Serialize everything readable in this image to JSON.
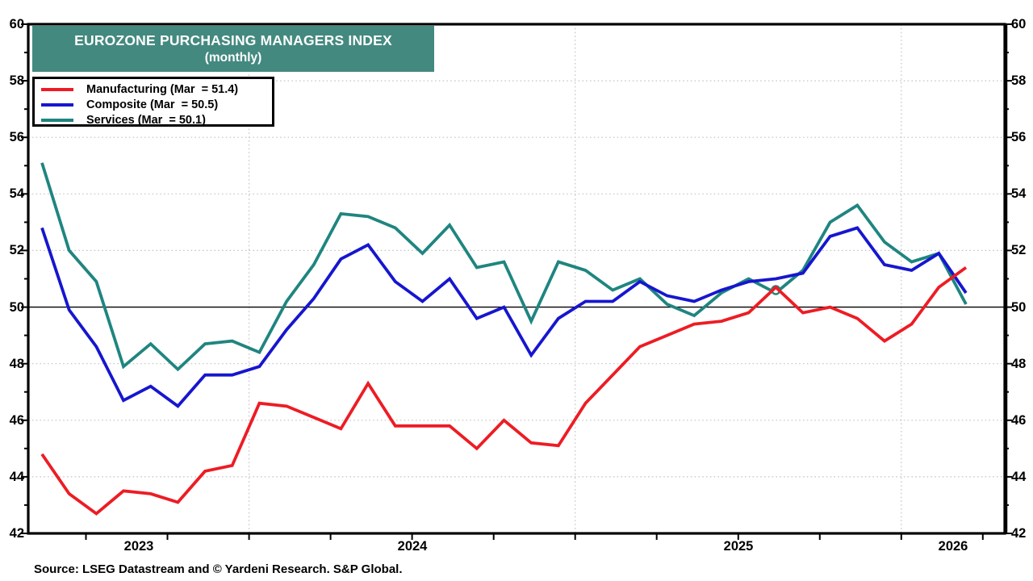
{
  "header": {
    "title": "EUROZONE PURCHASING MANAGERS INDEX",
    "subtitle": "(monthly)"
  },
  "legend": {
    "items": [
      {
        "label": "Manufacturing (Mar  = 51.4)",
        "series": "Manufacturing"
      },
      {
        "label": "Composite (Mar  = 50.5)",
        "series": "Composite"
      },
      {
        "label": "Services (Mar  = 50.1)",
        "series": "Services"
      }
    ]
  },
  "source": "Source: LSEG Datastream and © Yardeni Research. S&P Global.",
  "colors": {
    "manufacturing": "#ed1c24",
    "composite": "#1616cf",
    "services": "#1f8580",
    "title_background": "#43897f",
    "grid_dotted": "#c4c4c4",
    "axis": "#000000"
  },
  "chart_data": {
    "type": "line",
    "title": "EUROZONE PURCHASING MANAGERS INDEX (monthly)",
    "xlabel": "",
    "ylabel": "",
    "ylim": [
      42,
      60
    ],
    "y_ticks": [
      42,
      44,
      46,
      48,
      50,
      52,
      54,
      56,
      58,
      60
    ],
    "y_minor_step": 1,
    "reference_line": 50,
    "grid": "dotted horizontal at major ticks, dotted vertical at year starts",
    "legend_position": "top-left",
    "x_year_labels": [
      "2023",
      "2024",
      "2025",
      "2026"
    ],
    "x": [
      "2023-05",
      "2023-06",
      "2023-07",
      "2023-08",
      "2023-09",
      "2023-10",
      "2023-11",
      "2023-12",
      "2024-01",
      "2024-02",
      "2024-03",
      "2024-04",
      "2024-05",
      "2024-06",
      "2024-07",
      "2024-08",
      "2024-09",
      "2024-10",
      "2024-11",
      "2024-12",
      "2025-01",
      "2025-02",
      "2025-03",
      "2025-04",
      "2025-05",
      "2025-06",
      "2025-07",
      "2025-08",
      "2025-09",
      "2025-10",
      "2025-11",
      "2025-12",
      "2026-01",
      "2026-02",
      "2026-03"
    ],
    "series": [
      {
        "name": "Manufacturing",
        "color": "#ed1c24",
        "latest_label": "Mar = 51.4",
        "values": [
          44.8,
          43.4,
          42.7,
          43.5,
          43.4,
          43.1,
          44.2,
          44.4,
          46.6,
          46.5,
          46.1,
          45.7,
          47.3,
          45.8,
          45.8,
          45.8,
          45.0,
          46.0,
          45.2,
          45.1,
          46.6,
          47.6,
          48.6,
          49.0,
          49.4,
          49.5,
          49.8,
          50.7,
          49.8,
          50.0,
          49.6,
          48.8,
          49.4,
          50.7,
          51.4
        ]
      },
      {
        "name": "Composite",
        "color": "#1616cf",
        "latest_label": "Mar = 50.5",
        "values": [
          52.8,
          49.9,
          48.6,
          46.7,
          47.2,
          46.5,
          47.6,
          47.6,
          47.9,
          49.2,
          50.3,
          51.7,
          52.2,
          50.9,
          50.2,
          51.0,
          49.6,
          50.0,
          48.3,
          49.6,
          50.2,
          50.2,
          50.9,
          50.4,
          50.2,
          50.6,
          50.9,
          51.0,
          51.2,
          52.5,
          52.8,
          51.5,
          51.3,
          51.9,
          50.5
        ]
      },
      {
        "name": "Services",
        "color": "#1f8580",
        "latest_label": "Mar = 50.1",
        "values": [
          55.1,
          52.0,
          50.9,
          47.9,
          48.7,
          47.8,
          48.7,
          48.8,
          48.4,
          50.2,
          51.5,
          53.3,
          53.2,
          52.8,
          51.9,
          52.9,
          51.4,
          51.6,
          49.5,
          51.6,
          51.3,
          50.6,
          51.0,
          50.1,
          49.7,
          50.5,
          51.0,
          50.5,
          51.3,
          53.0,
          53.6,
          52.3,
          51.6,
          51.9,
          50.1
        ]
      }
    ],
    "crossing_marker": {
      "month": "2025-08",
      "value": 50.6
    }
  }
}
